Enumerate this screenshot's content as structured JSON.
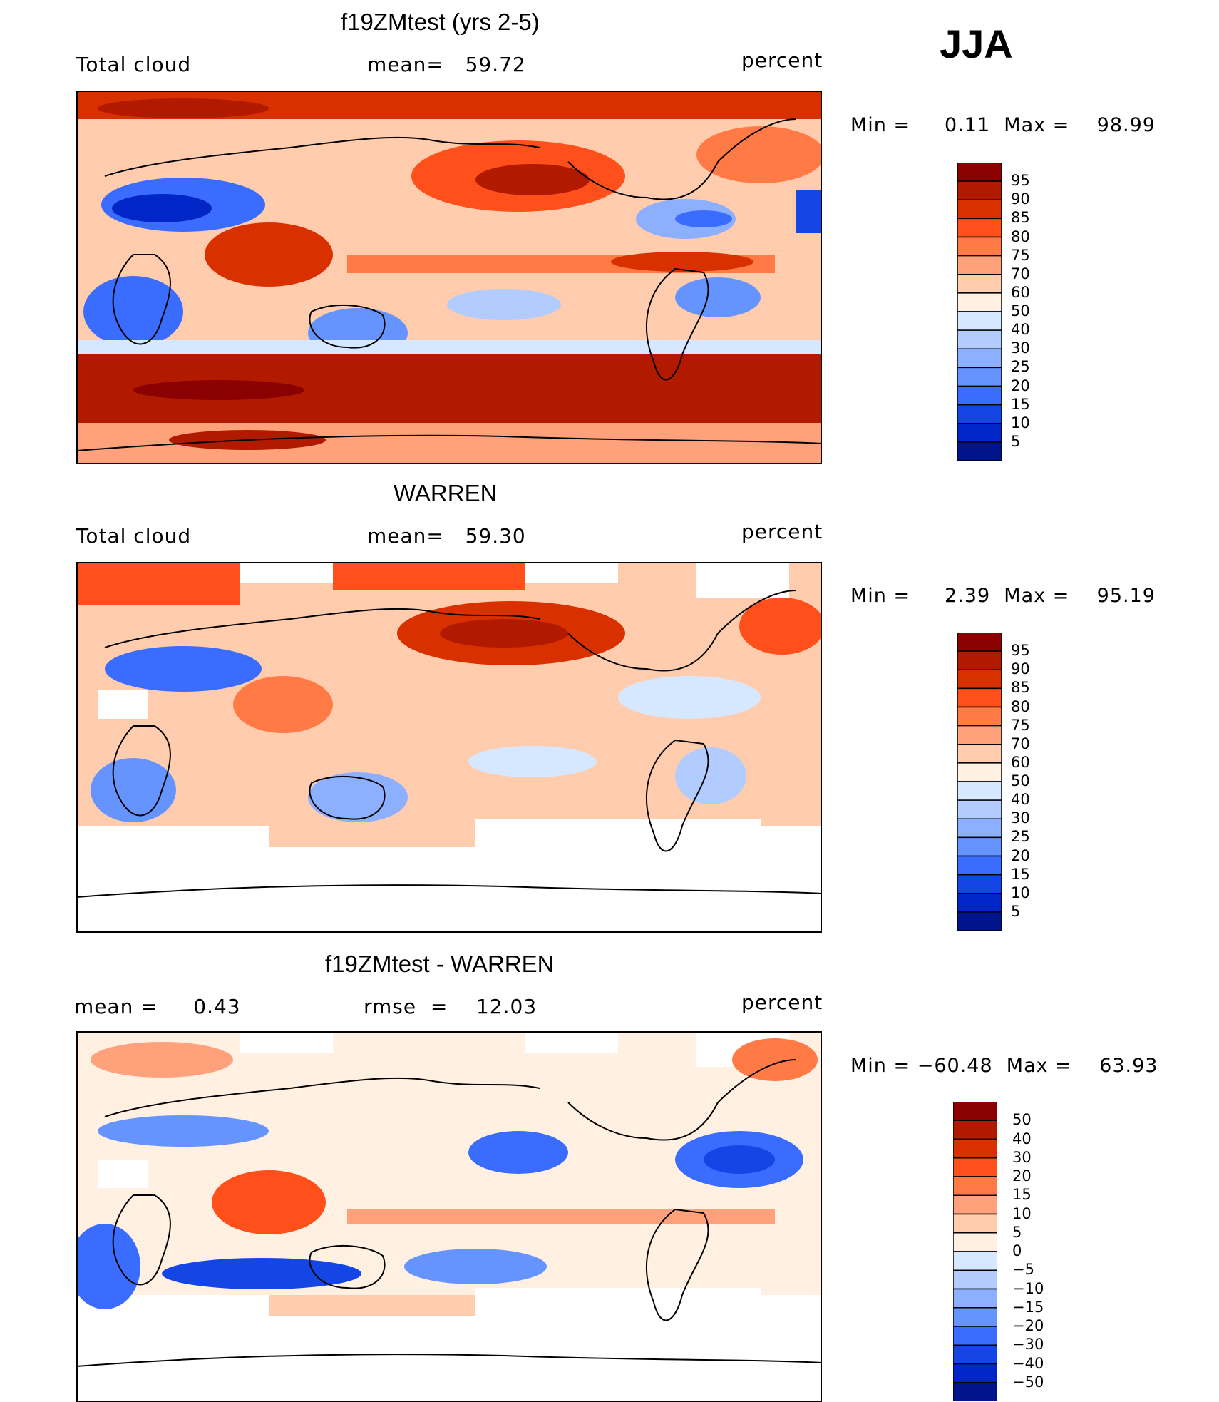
{
  "season": "JJA",
  "chart_data": [
    {
      "type": "heatmap",
      "title": "f19ZMtest (yrs 2-5)",
      "left_label": "Total cloud",
      "center_label": "mean=   59.72",
      "units": "percent",
      "stats": "Min =     0.11  Max =    98.99",
      "x_range": [
        0,
        360
      ],
      "y_range": [
        -90,
        90
      ],
      "colorbar": {
        "levels": [
          "95",
          "90",
          "85",
          "80",
          "75",
          "70",
          "60",
          "50",
          "40",
          "30",
          "25",
          "20",
          "15",
          "10",
          "5"
        ],
        "colors": [
          "#8b0000",
          "#b21a00",
          "#d93000",
          "#ff4f1a",
          "#ff7a45",
          "#ffa27c",
          "#ffccae",
          "#fff0e2",
          "#d6e8ff",
          "#b2ccff",
          "#8cb0ff",
          "#6694ff",
          "#3a6cff",
          "#1446e6",
          "#0026c8",
          "#00148c"
        ]
      }
    },
    {
      "type": "heatmap",
      "title": "WARREN",
      "left_label": "Total cloud",
      "center_label": "mean=   59.30",
      "units": "percent",
      "stats": "Min =     2.39  Max =    95.19",
      "x_range": [
        0,
        360
      ],
      "y_range": [
        -90,
        90
      ],
      "colorbar": {
        "levels": [
          "95",
          "90",
          "85",
          "80",
          "75",
          "70",
          "60",
          "50",
          "40",
          "30",
          "25",
          "20",
          "15",
          "10",
          "5"
        ],
        "colors": [
          "#8b0000",
          "#b21a00",
          "#d93000",
          "#ff4f1a",
          "#ff7a45",
          "#ffa27c",
          "#ffccae",
          "#fff0e2",
          "#d6e8ff",
          "#b2ccff",
          "#8cb0ff",
          "#6694ff",
          "#3a6cff",
          "#1446e6",
          "#0026c8",
          "#00148c"
        ]
      }
    },
    {
      "type": "heatmap",
      "title": "f19ZMtest - WARREN",
      "left_label": "mean =     0.43",
      "center_label": "rmse  =    12.03",
      "units": "percent",
      "stats": "Min = −60.48  Max =    63.93",
      "x_range": [
        0,
        360
      ],
      "y_range": [
        -90,
        90
      ],
      "colorbar": {
        "levels": [
          "50",
          "40",
          "30",
          "20",
          "15",
          "10",
          "5",
          "0",
          "−5",
          "−10",
          "−15",
          "−20",
          "−30",
          "−40",
          "−50"
        ],
        "colors": [
          "#8b0000",
          "#b21a00",
          "#d93000",
          "#ff4f1a",
          "#ff7a45",
          "#ffa27c",
          "#ffccae",
          "#fff0e2",
          "#d6e8ff",
          "#b2ccff",
          "#8cb0ff",
          "#6694ff",
          "#3a6cff",
          "#1446e6",
          "#0026c8",
          "#00148c"
        ]
      }
    }
  ]
}
